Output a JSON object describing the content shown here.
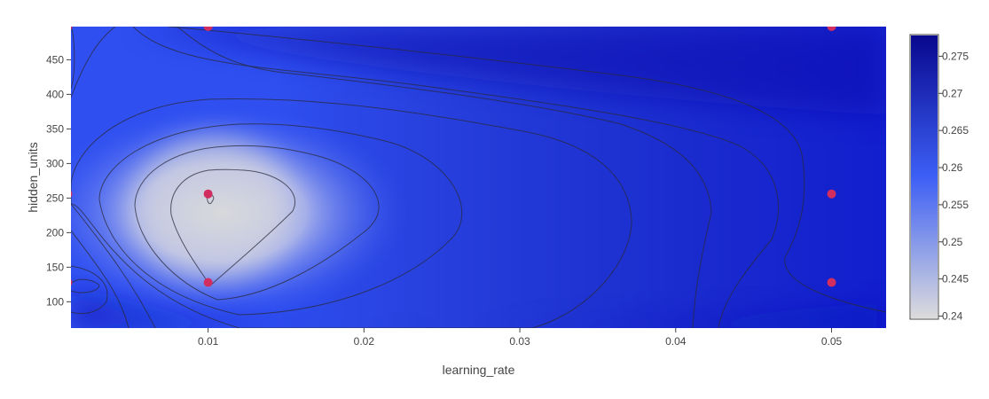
{
  "chart_data": {
    "type": "contour",
    "xlabel": "learning_rate",
    "ylabel": "hidden_units",
    "x_ticks": [
      "0.01",
      "0.02",
      "0.03",
      "0.04",
      "0.05"
    ],
    "x_tick_values": [
      0.01,
      0.02,
      0.03,
      0.04,
      0.05
    ],
    "y_ticks": [
      "100",
      "150",
      "200",
      "250",
      "300",
      "350",
      "400",
      "450"
    ],
    "y_tick_values": [
      100,
      150,
      200,
      250,
      300,
      350,
      400,
      450
    ],
    "xlim": [
      0.0012,
      0.0535
    ],
    "ylim": [
      62,
      498
    ],
    "colorbar": {
      "ticks": [
        "0.24",
        "0.245",
        "0.25",
        "0.255",
        "0.26",
        "0.265",
        "0.27",
        "0.275"
      ],
      "tick_values": [
        0.24,
        0.245,
        0.25,
        0.255,
        0.26,
        0.265,
        0.27,
        0.275
      ],
      "range": [
        0.2397,
        0.2778
      ]
    },
    "colorscale": [
      "#dcdcdc",
      "#3d5ff5",
      "#08088e"
    ],
    "trials": [
      {
        "learning_rate": 0.001,
        "hidden_units": 498
      },
      {
        "learning_rate": 0.001,
        "hidden_units": 256
      },
      {
        "learning_rate": 0.001,
        "hidden_units": 128
      },
      {
        "learning_rate": 0.01,
        "hidden_units": 498
      },
      {
        "learning_rate": 0.01,
        "hidden_units": 256
      },
      {
        "learning_rate": 0.01,
        "hidden_units": 128
      },
      {
        "learning_rate": 0.05,
        "hidden_units": 498
      },
      {
        "learning_rate": 0.05,
        "hidden_units": 256
      },
      {
        "learning_rate": 0.05,
        "hidden_units": 128
      }
    ],
    "marker_color": "#d12d5f",
    "grid": false
  }
}
